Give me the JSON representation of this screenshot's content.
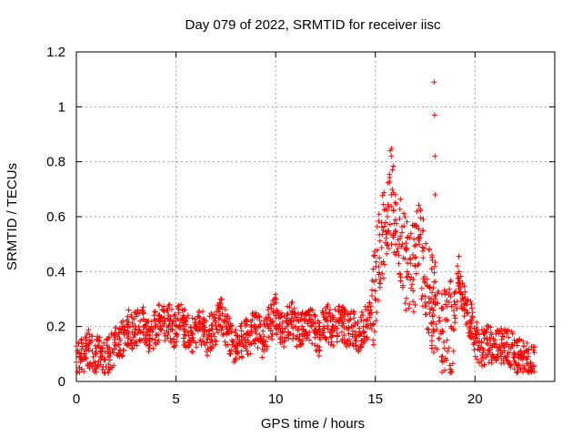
{
  "chart_data": {
    "type": "scatter",
    "title": "Day 079 of 2022, SRMTID for receiver iisc",
    "xlabel": "GPS time / hours",
    "ylabel": "SRMTID / TECUs",
    "xlim": [
      0,
      24
    ],
    "ylim": [
      0,
      1.2
    ],
    "xticks": [
      0,
      5,
      10,
      15,
      20
    ],
    "yticks": [
      0,
      0.2,
      0.4,
      0.6,
      0.8,
      1,
      1.2
    ],
    "ytick_labels": [
      "0",
      "0.2",
      "0.4",
      "0.6",
      "0.8",
      "1",
      "1.2"
    ],
    "grid": true,
    "marker": "+",
    "color": "#ff0000",
    "series": [
      {
        "name": "SRMTID",
        "x": [
          0.0,
          0.2,
          0.4,
          0.6,
          0.8,
          1.0,
          1.2,
          1.4,
          1.6,
          1.8,
          2.0,
          2.2,
          2.4,
          2.6,
          2.8,
          3.0,
          3.2,
          3.4,
          3.6,
          3.8,
          4.0,
          4.2,
          4.4,
          4.6,
          4.8,
          5.0,
          5.2,
          5.4,
          5.6,
          5.8,
          6.0,
          6.2,
          6.4,
          6.6,
          6.8,
          7.0,
          7.2,
          7.4,
          7.6,
          7.8,
          8.0,
          8.2,
          8.4,
          8.6,
          8.8,
          9.0,
          9.2,
          9.4,
          9.6,
          9.8,
          10.0,
          10.2,
          10.4,
          10.6,
          10.8,
          11.0,
          11.2,
          11.4,
          11.6,
          11.8,
          12.0,
          12.2,
          12.4,
          12.6,
          12.8,
          13.0,
          13.2,
          13.4,
          13.6,
          13.8,
          14.0,
          14.2,
          14.4,
          14.6,
          14.8,
          15.0,
          15.2,
          15.4,
          15.6,
          15.8,
          16.0,
          16.2,
          16.4,
          16.6,
          16.8,
          17.0,
          17.2,
          17.4,
          17.6,
          17.8,
          17.9,
          18.0,
          18.2,
          18.4,
          18.6,
          18.8,
          19.0,
          19.2,
          19.4,
          19.6,
          19.8,
          20.0,
          20.2,
          20.4,
          20.6,
          20.8,
          21.0,
          21.2,
          21.4,
          21.6,
          21.8,
          22.0,
          22.2,
          22.4,
          22.6,
          22.8
        ],
        "y": [
          0.07,
          0.09,
          0.1,
          0.12,
          0.11,
          0.1,
          0.09,
          0.08,
          0.1,
          0.11,
          0.13,
          0.15,
          0.17,
          0.2,
          0.18,
          0.19,
          0.22,
          0.2,
          0.17,
          0.18,
          0.2,
          0.22,
          0.21,
          0.23,
          0.19,
          0.2,
          0.22,
          0.2,
          0.18,
          0.17,
          0.19,
          0.21,
          0.18,
          0.16,
          0.19,
          0.2,
          0.24,
          0.22,
          0.18,
          0.15,
          0.12,
          0.14,
          0.17,
          0.15,
          0.18,
          0.2,
          0.17,
          0.15,
          0.2,
          0.22,
          0.25,
          0.2,
          0.18,
          0.21,
          0.23,
          0.2,
          0.17,
          0.19,
          0.21,
          0.2,
          0.18,
          0.16,
          0.2,
          0.22,
          0.19,
          0.2,
          0.22,
          0.21,
          0.19,
          0.2,
          0.18,
          0.17,
          0.2,
          0.22,
          0.25,
          0.33,
          0.45,
          0.55,
          0.6,
          0.68,
          0.55,
          0.5,
          0.45,
          0.4,
          0.38,
          0.42,
          0.5,
          0.45,
          0.35,
          0.3,
          0.26,
          0.28,
          0.22,
          0.18,
          0.15,
          0.2,
          0.28,
          0.4,
          0.3,
          0.25,
          0.22,
          0.16,
          0.13,
          0.12,
          0.14,
          0.13,
          0.15,
          0.12,
          0.13,
          0.14,
          0.12,
          0.1,
          0.09,
          0.08,
          0.08,
          0.07
        ],
        "outliers_x": [
          17.95,
          17.97,
          17.99,
          18.0,
          15.75,
          15.8
        ],
        "outliers_y": [
          1.09,
          0.97,
          0.82,
          0.68,
          0.84,
          0.82
        ]
      }
    ]
  }
}
